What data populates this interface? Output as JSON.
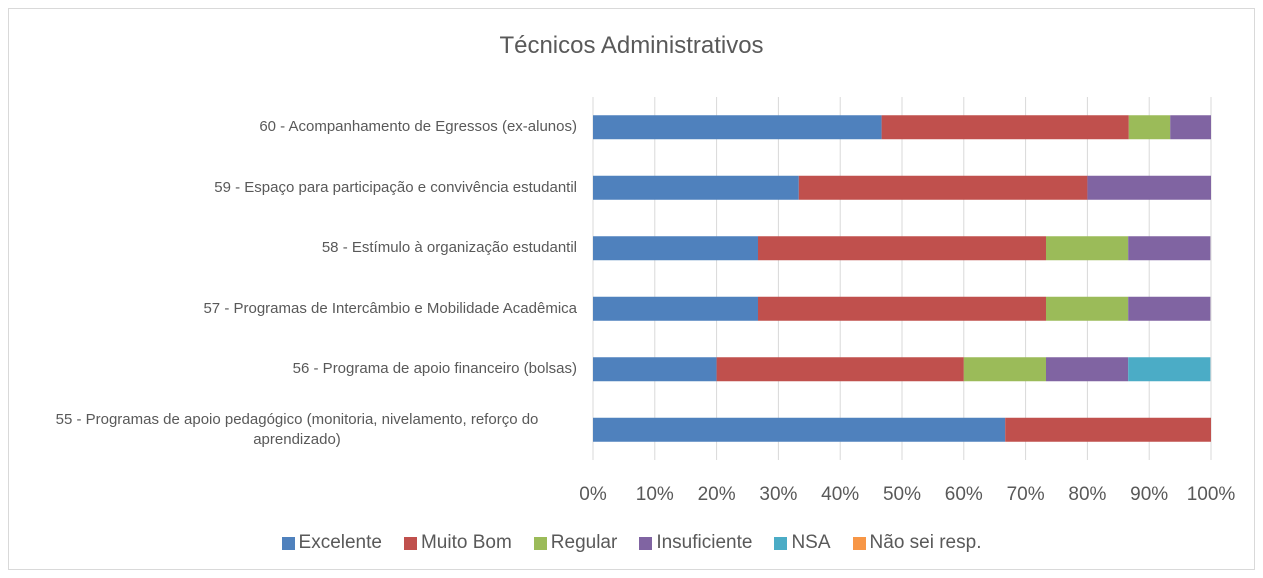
{
  "chart_data": {
    "type": "stacked_bar_horizontal",
    "title": "Técnicos Administrativos",
    "categories": [
      "60 - Acompanhamento de Egressos (ex-alunos)",
      "59 - Espaço para participação e convivência estudantil",
      "58 - Estímulo à organização estudantil",
      "57 - Programas de Intercâmbio e Mobilidade Acadêmica",
      "56 - Programa de apoio financeiro (bolsas)",
      "55 - Programas de apoio pedagógico (monitoria, nivelamento, reforço do aprendizado)"
    ],
    "series": [
      {
        "name": "Excelente",
        "color": "#4f81bd",
        "values": [
          46.7,
          33.3,
          26.7,
          26.7,
          20,
          66.7
        ]
      },
      {
        "name": "Muito Bom",
        "color": "#c0504d",
        "values": [
          40,
          46.7,
          46.6,
          46.6,
          40,
          33.3
        ]
      },
      {
        "name": "Regular",
        "color": "#9bbb59",
        "values": [
          6.7,
          0,
          13.3,
          13.3,
          13.3,
          0
        ]
      },
      {
        "name": "Insuficiente",
        "color": "#8064a2",
        "values": [
          6.6,
          20,
          13.3,
          13.3,
          13.3,
          0
        ]
      },
      {
        "name": "NSA",
        "color": "#4bacc6",
        "values": [
          0,
          0,
          0,
          0,
          13.3,
          0
        ]
      },
      {
        "name": "Não sei resp.",
        "color": "#f79646",
        "values": [
          0,
          0,
          0,
          0,
          0,
          0
        ]
      }
    ],
    "xlim": [
      0,
      100
    ],
    "xticks": [
      {
        "value": 0,
        "label": "0%"
      },
      {
        "value": 10,
        "label": "10%"
      },
      {
        "value": 20,
        "label": "20%"
      },
      {
        "value": 30,
        "label": "30%"
      },
      {
        "value": 40,
        "label": "40%"
      },
      {
        "value": 50,
        "label": "50%"
      },
      {
        "value": 60,
        "label": "60%"
      },
      {
        "value": 70,
        "label": "70%"
      },
      {
        "value": 80,
        "label": "80%"
      },
      {
        "value": 90,
        "label": "90%"
      },
      {
        "value": 100,
        "label": "100%"
      }
    ],
    "grid": true,
    "legend": "bottom"
  }
}
